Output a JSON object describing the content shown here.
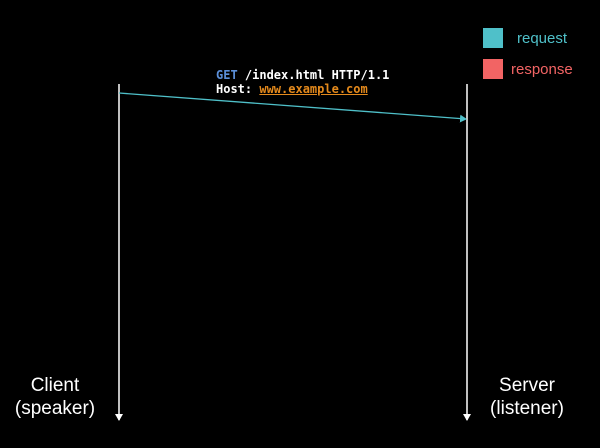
{
  "legend": {
    "request": {
      "label": "request",
      "color": "#4fc0c9"
    },
    "response": {
      "label": "response",
      "color": "#f26464"
    }
  },
  "message": {
    "method": "GET",
    "request_line_rest": " /index.html HTTP/1.1",
    "host_label": "Host: ",
    "host_value": "www.example.com"
  },
  "client": {
    "name": "Client",
    "role": "(speaker)"
  },
  "server": {
    "name": "Server",
    "role": "(listener)"
  },
  "colors": {
    "background": "#000000",
    "lifeline": "#ffffff",
    "method": "#5b8fd9",
    "host_link": "#e58a1c"
  }
}
